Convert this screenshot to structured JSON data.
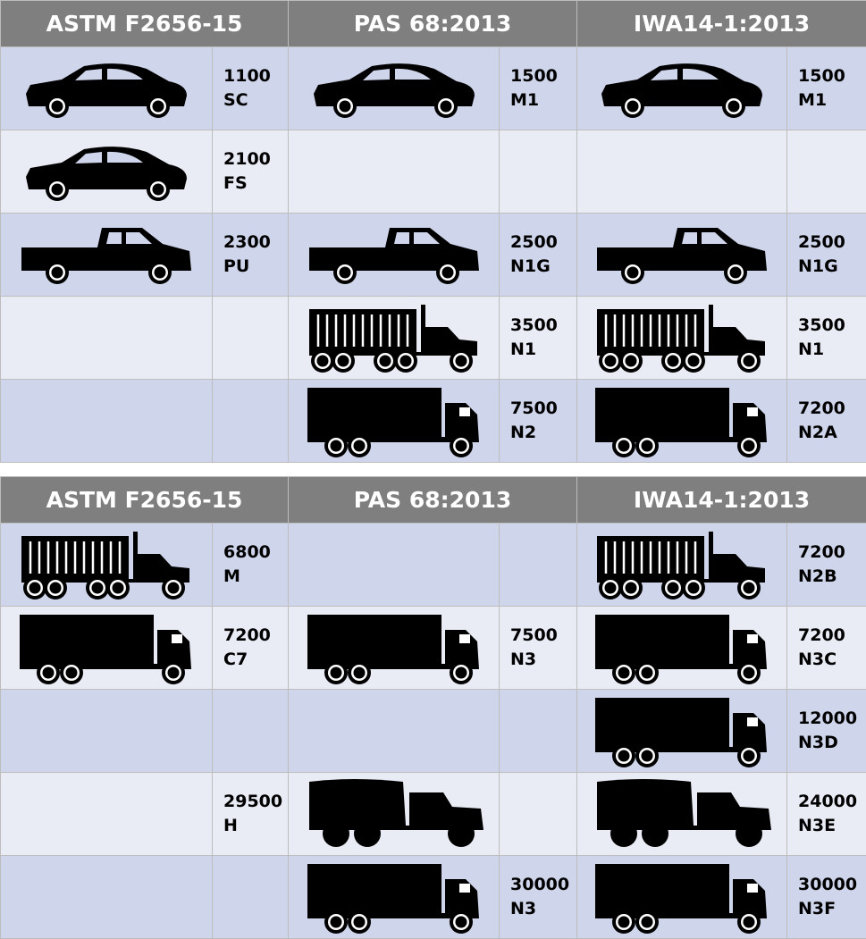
{
  "colors": {
    "header_bg": "#7f7f7f",
    "row_dark": "#cfd5ea",
    "row_light": "#e9ebf5"
  },
  "tables": [
    {
      "headers": [
        "ASTM F2656-15",
        "PAS 68:2013",
        "IWA14-1:2013"
      ],
      "rows": [
        [
          {
            "vehicle": "car",
            "mass": "1100",
            "class": "SC"
          },
          {
            "vehicle": "car",
            "mass": "1500",
            "class": "M1"
          },
          {
            "vehicle": "car",
            "mass": "1500",
            "class": "M1"
          }
        ],
        [
          {
            "vehicle": "car",
            "mass": "2100",
            "class": "FS"
          },
          {},
          {}
        ],
        [
          {
            "vehicle": "pickup",
            "mass": "2300",
            "class": "PU"
          },
          {
            "vehicle": "pickup",
            "mass": "2500",
            "class": "N1G"
          },
          {
            "vehicle": "pickup",
            "mass": "2500",
            "class": "N1G"
          }
        ],
        [
          {},
          {
            "vehicle": "container-truck",
            "mass": "3500",
            "class": "N1"
          },
          {
            "vehicle": "container-truck",
            "mass": "3500",
            "class": "N1"
          }
        ],
        [
          {},
          {
            "vehicle": "box-truck",
            "mass": "7500",
            "class": "N2"
          },
          {
            "vehicle": "box-truck",
            "mass": "7200",
            "class": "N2A"
          }
        ]
      ]
    },
    {
      "headers": [
        "ASTM F2656-15",
        "PAS 68:2013",
        "IWA14-1:2013"
      ],
      "rows": [
        [
          {
            "vehicle": "container-truck",
            "mass": "6800",
            "class": "M"
          },
          {},
          {
            "vehicle": "container-truck",
            "mass": "7200",
            "class": "N2B"
          }
        ],
        [
          {
            "vehicle": "box-truck",
            "mass": "7200",
            "class": "C7"
          },
          {
            "vehicle": "box-truck",
            "mass": "7500",
            "class": "N3"
          },
          {
            "vehicle": "box-truck",
            "mass": "7200",
            "class": "N3C"
          }
        ],
        [
          {},
          {},
          {
            "vehicle": "box-truck",
            "mass": "12000",
            "class": "N3D"
          }
        ],
        [
          {
            "mass": "29500",
            "class": "H"
          },
          {
            "vehicle": "military-truck"
          },
          {
            "vehicle": "military-truck",
            "mass": "24000",
            "class": "N3E"
          }
        ],
        [
          {},
          {
            "vehicle": "box-truck",
            "mass": "30000",
            "class": "N3"
          },
          {
            "vehicle": "box-truck",
            "mass": "30000",
            "class": "N3F"
          }
        ]
      ]
    }
  ]
}
